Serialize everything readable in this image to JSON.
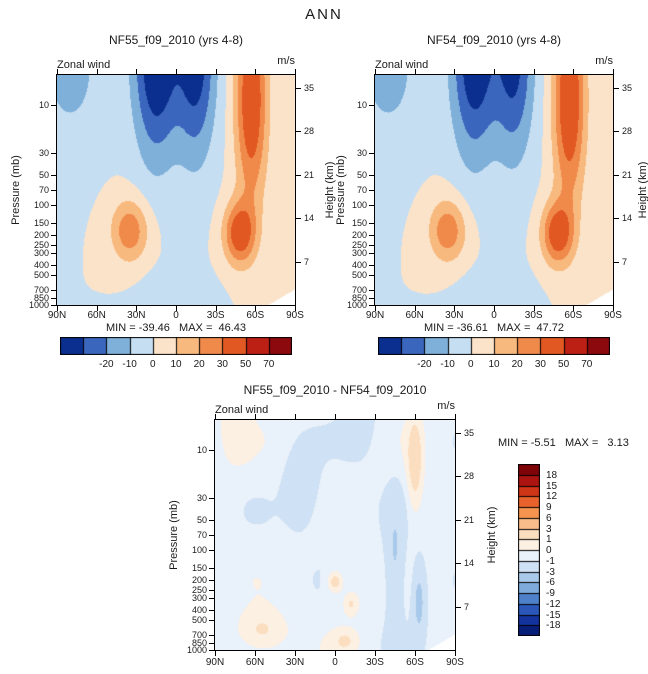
{
  "figure_title": "ANN",
  "chart_data": [
    {
      "type": "heatmap",
      "title": "NF55_f09_2010 (yrs 4-8)",
      "variable": "Zonal wind",
      "units": "m/s",
      "xlabel": "",
      "x_ticks": [
        "90N",
        "60N",
        "30N",
        "0",
        "30S",
        "60S",
        "90S"
      ],
      "ylabel": "Pressure (mb)",
      "y_ticks": [
        "10",
        "30",
        "50",
        "70",
        "100",
        "150",
        "200",
        "250",
        "300",
        "400",
        "500",
        "700",
        "850",
        "1000"
      ],
      "y2label": "Height (km)",
      "y2_ticks": [
        "35",
        "28",
        "21",
        "14",
        "7"
      ],
      "stats": "MIN = -39.46   MAX =  46.43",
      "min": -39.46,
      "max": 46.43,
      "contour_levels": [
        -30,
        -20,
        -10,
        0,
        10,
        20,
        30,
        50,
        70
      ],
      "palette": [
        "#0b2f8e",
        "#3b66bd",
        "#7fb0da",
        "#c6def2",
        "#fbe3c9",
        "#f8b97e",
        "#f08a4b",
        "#e25822",
        "#bc1f14",
        "#8c0a0e"
      ],
      "colorbar_labels": [
        "-20",
        "-10",
        "0",
        "10",
        "20",
        "30",
        "50",
        "70"
      ],
      "legend_position": "bottom",
      "description": "Annual-mean zonal-mean zonal wind: westerly (positive, orange/red) subtropical jets near 200 mb in both hemispheres, a deep Southern Hemisphere westerly column near 60S reaching the upper stratosphere, strong easterlies (negative, dark blue) in the tropical upper stratosphere, white mask over Antarctic topography."
    },
    {
      "type": "heatmap",
      "title": "NF54_f09_2010 (yrs 4-8)",
      "variable": "Zonal wind",
      "units": "m/s",
      "xlabel": "",
      "x_ticks": [
        "90N",
        "60N",
        "30N",
        "0",
        "30S",
        "60S",
        "90S"
      ],
      "ylabel": "Pressure (mb)",
      "y_ticks": [
        "10",
        "30",
        "50",
        "70",
        "100",
        "150",
        "200",
        "250",
        "300",
        "400",
        "500",
        "700",
        "850",
        "1000"
      ],
      "y2label": "Height (km)",
      "y2_ticks": [
        "35",
        "28",
        "21",
        "14",
        "7"
      ],
      "stats": "MIN = -36.61   MAX =  47.72",
      "min": -36.61,
      "max": 47.72,
      "contour_levels": [
        -30,
        -20,
        -10,
        0,
        10,
        20,
        30,
        50,
        70
      ],
      "palette": [
        "#0b2f8e",
        "#3b66bd",
        "#7fb0da",
        "#c6def2",
        "#fbe3c9",
        "#f8b97e",
        "#f08a4b",
        "#e25822",
        "#bc1f14",
        "#8c0a0e"
      ],
      "colorbar_labels": [
        "-20",
        "-10",
        "0",
        "10",
        "20",
        "30",
        "50",
        "70"
      ],
      "legend_position": "bottom",
      "description": "Same field as left panel for run NF54_f09_2010; nearly identical structure with slightly stronger maximum westerlies and weaker minimum easterlies."
    },
    {
      "type": "heatmap",
      "title": "NF55_f09_2010 - NF54_f09_2010",
      "variable": "Zonal wind",
      "units": "m/s",
      "xlabel": "",
      "x_ticks": [
        "90N",
        "60N",
        "30N",
        "0",
        "30S",
        "60S",
        "90S"
      ],
      "ylabel": "Pressure (mb)",
      "y_ticks": [
        "10",
        "30",
        "50",
        "70",
        "100",
        "150",
        "200",
        "250",
        "300",
        "400",
        "500",
        "700",
        "850",
        "1000"
      ],
      "y2label": "Height (km)",
      "y2_ticks": [
        "35",
        "28",
        "21",
        "14",
        "7"
      ],
      "stats": "MIN = -5.51   MAX =   3.13",
      "min": -5.51,
      "max": 3.13,
      "contour_levels": [
        -18,
        -15,
        -12,
        -9,
        -6,
        -3,
        -1,
        0,
        1,
        3,
        6,
        9,
        12,
        15,
        18
      ],
      "palette": [
        "#081f7a",
        "#14339e",
        "#2b57b8",
        "#4f81ca",
        "#7fabdc",
        "#a9c9ea",
        "#cfe1f4",
        "#e9f1fa",
        "#fcf0e3",
        "#fbdec0",
        "#f9bd8c",
        "#f4944f",
        "#e7622c",
        "#cf3517",
        "#ab1410",
        "#7f0408"
      ],
      "colorbar_labels": [
        "18",
        "15",
        "12",
        "9",
        "6",
        "3",
        "1",
        "0",
        "-1",
        "-3",
        "-6",
        "-9",
        "-12",
        "-15",
        "-18"
      ],
      "legend_position": "right",
      "description": "Difference NF55 minus NF54: mostly weak negative values (-1 to 0, pale blue) with small positive patches near the tropical tropopause and lower levels, and alternating positive/negative bands near 60S."
    }
  ]
}
